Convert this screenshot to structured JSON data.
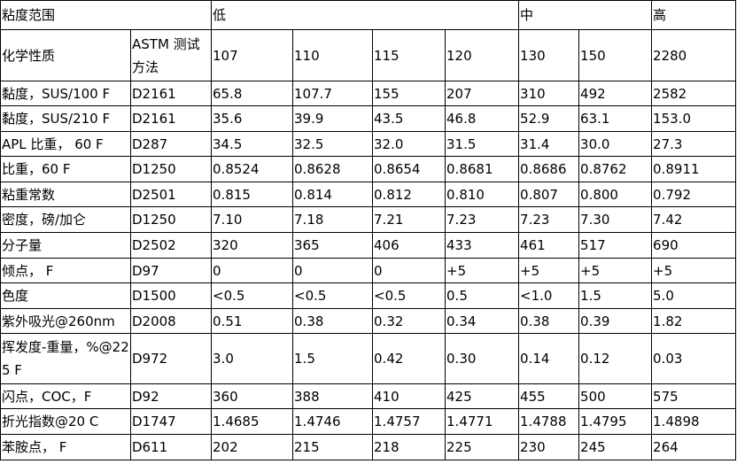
{
  "table": {
    "header": [
      "粘度范围",
      "低",
      "中",
      "高"
    ],
    "columns": [
      "化学性质",
      "ASTM 测试方法",
      "107",
      "110",
      "115",
      "120",
      "130",
      "150",
      "2280"
    ],
    "rows": [
      [
        "黏度，SUS/100 F",
        "D2161",
        "65.8",
        "107.7",
        "155",
        "207",
        "310",
        "492",
        "2582"
      ],
      [
        "黏度，SUS/210 F",
        "D2161",
        "35.6",
        "39.9",
        "43.5",
        "46.8",
        "52.9",
        "63.1",
        "153.0"
      ],
      [
        "APL 比重， 60 F",
        "D287",
        "34.5",
        "32.5",
        "32.0",
        "31.5",
        "31.4",
        "30.0",
        "27.3"
      ],
      [
        "比重，60 F",
        "D1250",
        "0.8524",
        "0.8628",
        "0.8654",
        "0.8681",
        "0.8686",
        "0.8762",
        "0.8911"
      ],
      [
        "粘重常数",
        "D2501",
        "0.815",
        "0.814",
        "0.812",
        "0.810",
        "0.807",
        "0.800",
        "0.792"
      ],
      [
        "密度，磅/加仑",
        "D1250",
        "7.10",
        "7.18",
        "7.21",
        "7.23",
        "7.23",
        "7.30",
        "7.42"
      ],
      [
        "分子量",
        "D2502",
        "320",
        "365",
        "406",
        "433",
        "461",
        "517",
        "690"
      ],
      [
        "倾点， F",
        "D97",
        "0",
        "0",
        "0",
        "+5",
        "+5",
        "+5",
        "+5"
      ],
      [
        "色度",
        "D1500",
        "<0.5",
        "<0.5",
        "<0.5",
        "0.5",
        "<1.0",
        "1.5",
        "5.0"
      ],
      [
        "紫外吸光@260nm",
        "D2008",
        "0.51",
        "0.38",
        "0.32",
        "0.34",
        "0.38",
        "0.39",
        "1.82"
      ],
      [
        "挥发度-重量，%@225 F",
        "D972",
        "3.0",
        "1.5",
        "0.42",
        "0.30",
        "0.14",
        "0.12",
        "0.03"
      ],
      [
        "闪点，COC，F",
        "D92",
        "360",
        "388",
        "410",
        "425",
        "455",
        "500",
        "575"
      ],
      [
        "折光指数@20 C",
        "D1747",
        "1.4685",
        "1.4746",
        "1.4757",
        "1.4771",
        "1.4788",
        "1.4795",
        "1.4898"
      ],
      [
        "苯胺点， F",
        "D611",
        "202",
        "215",
        "218",
        "225",
        "230",
        "245",
        "264"
      ]
    ]
  }
}
